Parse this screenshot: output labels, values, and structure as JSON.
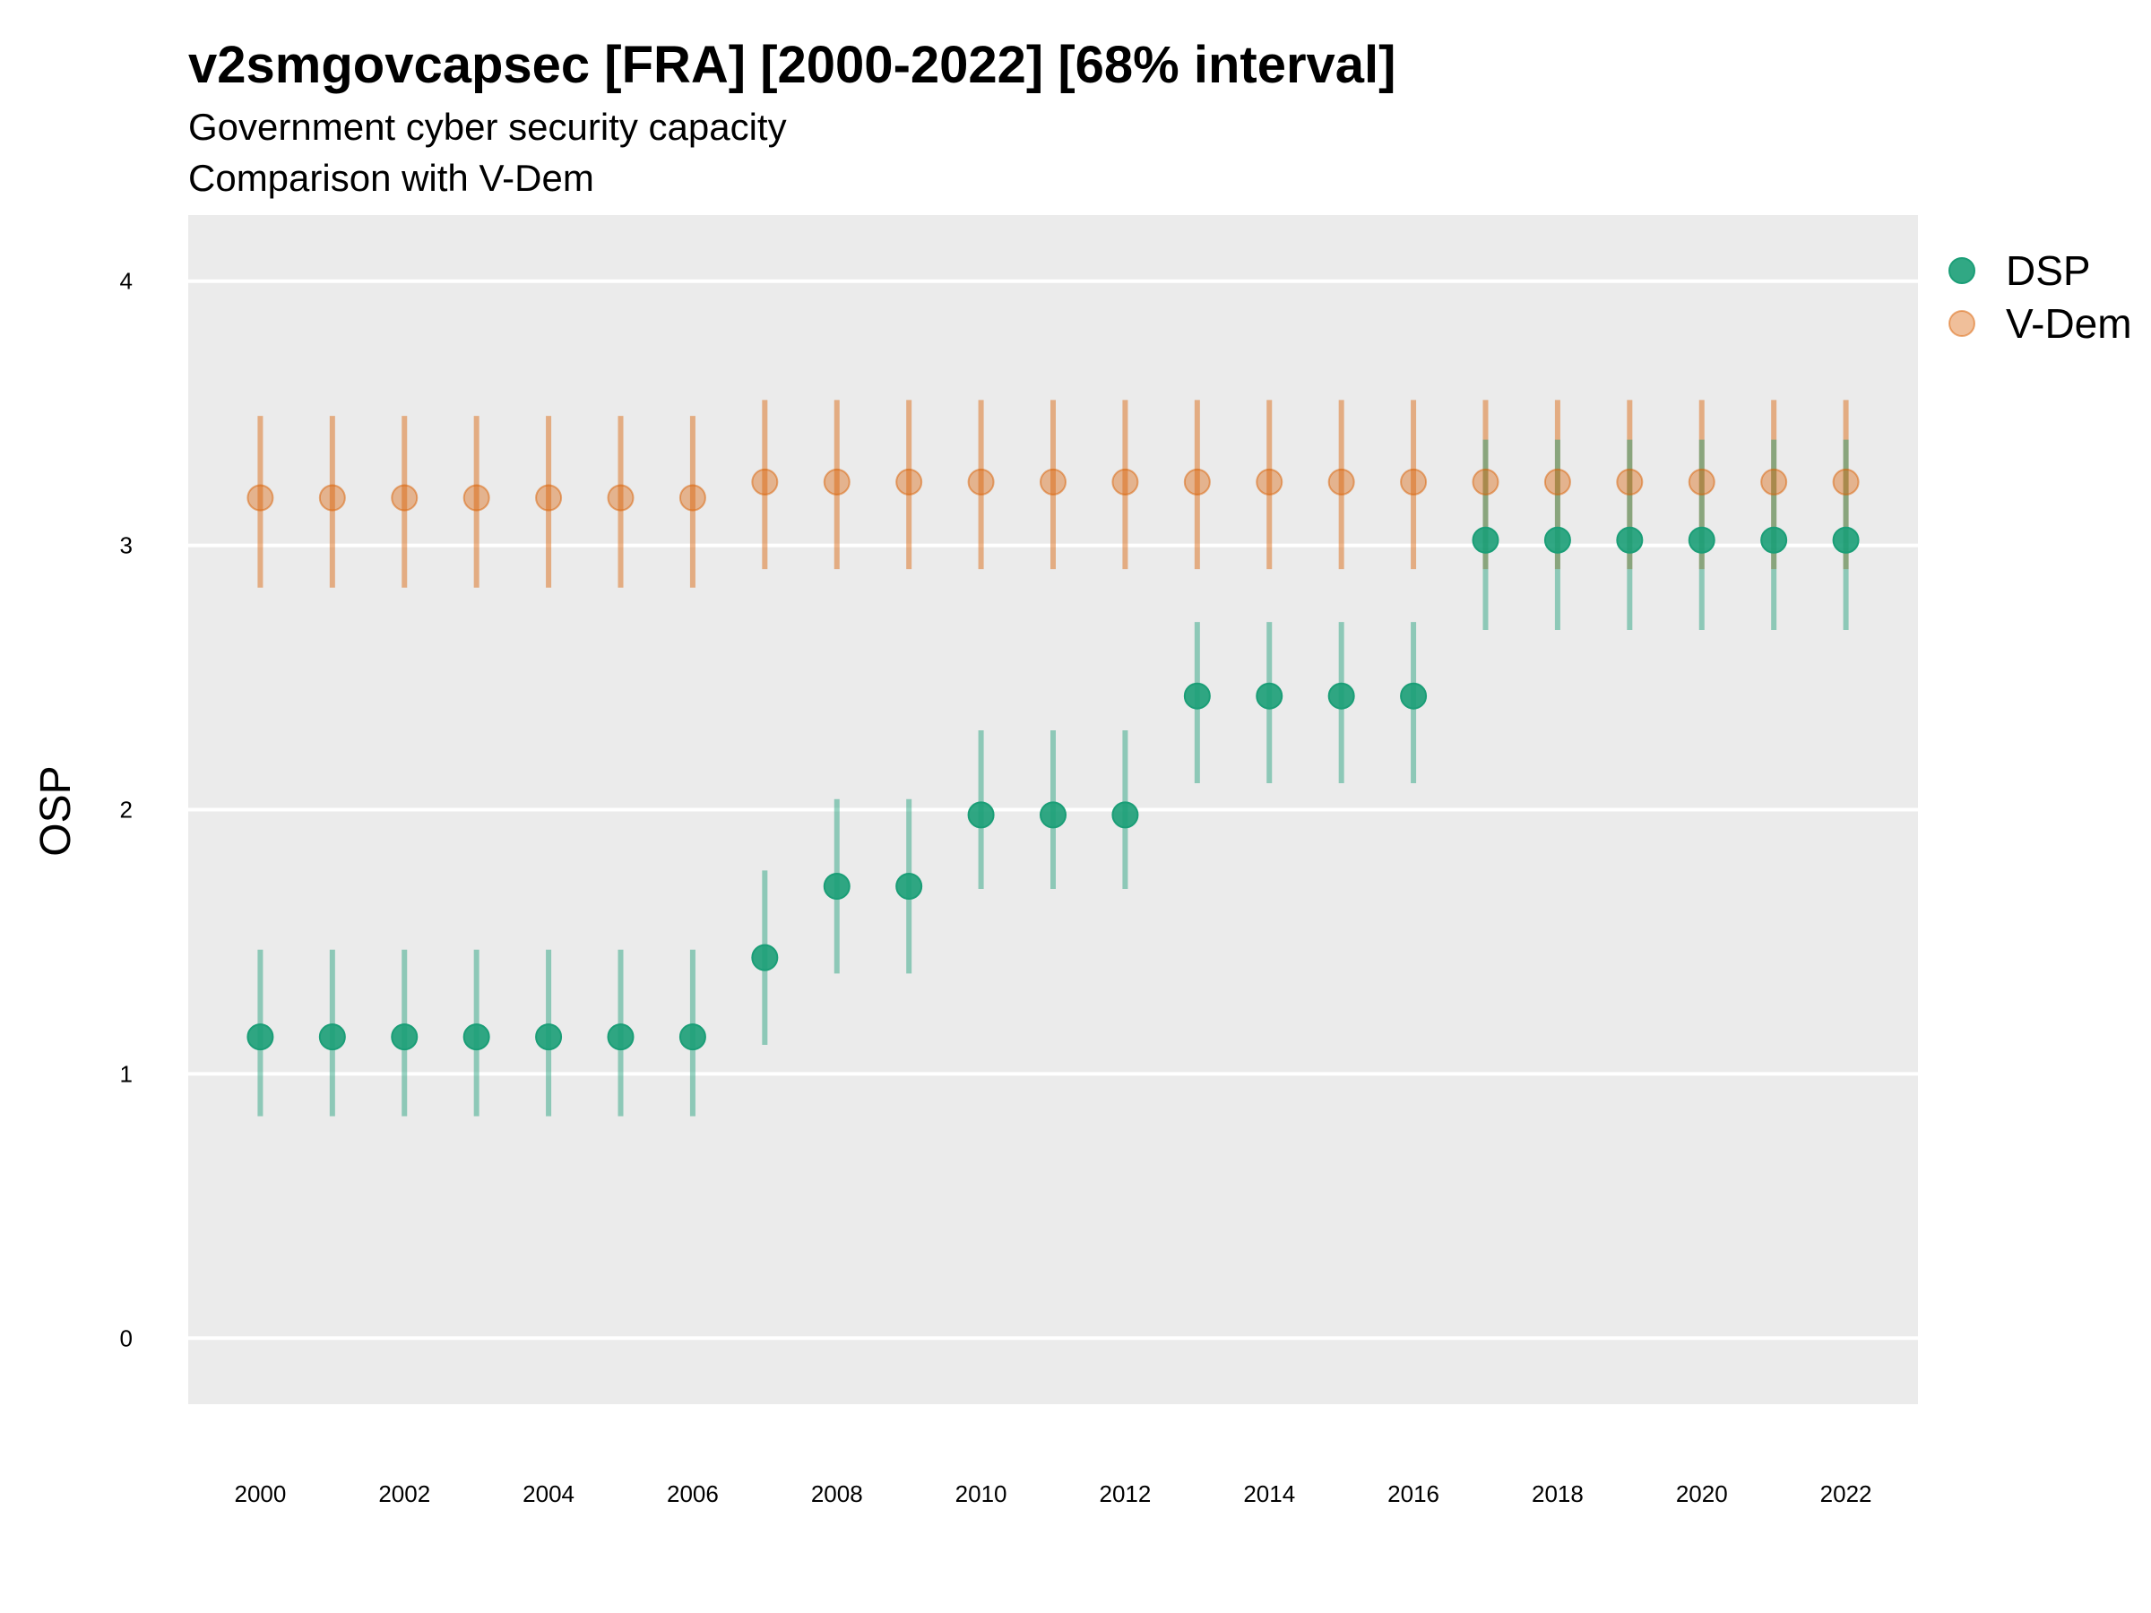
{
  "chart_data": {
    "type": "scatter",
    "title": "v2smgovcapsec [FRA] [2000-2022] [68% interval]",
    "subtitle": "Government cyber security capacity",
    "subtitle2": "Comparison with V-Dem",
    "xlabel": "",
    "ylabel": "OSP",
    "xlim": [
      1999,
      2023
    ],
    "ylim": [
      -0.25,
      4.25
    ],
    "y_ticks": [
      0,
      1,
      2,
      3,
      4
    ],
    "x_ticks": [
      2000,
      2002,
      2004,
      2006,
      2008,
      2010,
      2012,
      2014,
      2016,
      2018,
      2020,
      2022
    ],
    "x": [
      2000,
      2001,
      2002,
      2003,
      2004,
      2005,
      2006,
      2007,
      2008,
      2009,
      2010,
      2011,
      2012,
      2013,
      2014,
      2015,
      2016,
      2017,
      2018,
      2019,
      2020,
      2021,
      2022
    ],
    "legend_position": "right",
    "series": [
      {
        "name": "DSP",
        "color": "#1b9e77",
        "values": [
          1.14,
          1.14,
          1.14,
          1.14,
          1.14,
          1.14,
          1.14,
          1.44,
          1.71,
          1.71,
          1.98,
          1.98,
          1.98,
          2.43,
          2.43,
          2.43,
          2.43,
          3.02,
          3.02,
          3.02,
          3.02,
          3.02,
          3.02
        ],
        "lower": [
          0.84,
          0.84,
          0.84,
          0.84,
          0.84,
          0.84,
          0.84,
          1.11,
          1.38,
          1.38,
          1.7,
          1.7,
          1.7,
          2.1,
          2.1,
          2.1,
          2.1,
          2.68,
          2.68,
          2.68,
          2.68,
          2.68,
          2.68
        ],
        "upper": [
          1.47,
          1.47,
          1.47,
          1.47,
          1.47,
          1.47,
          1.47,
          1.77,
          2.04,
          2.04,
          2.3,
          2.3,
          2.3,
          2.71,
          2.71,
          2.71,
          2.71,
          3.4,
          3.4,
          3.4,
          3.4,
          3.4,
          3.4
        ]
      },
      {
        "name": "V-Dem",
        "color": "#d95f02",
        "values": [
          3.18,
          3.18,
          3.18,
          3.18,
          3.18,
          3.18,
          3.18,
          3.24,
          3.24,
          3.24,
          3.24,
          3.24,
          3.24,
          3.24,
          3.24,
          3.24,
          3.24,
          3.24,
          3.24,
          3.24,
          3.24,
          3.24,
          3.24
        ],
        "lower": [
          2.84,
          2.84,
          2.84,
          2.84,
          2.84,
          2.84,
          2.84,
          2.91,
          2.91,
          2.91,
          2.91,
          2.91,
          2.91,
          2.91,
          2.91,
          2.91,
          2.91,
          2.91,
          2.91,
          2.91,
          2.91,
          2.91,
          2.91
        ],
        "upper": [
          3.49,
          3.49,
          3.49,
          3.49,
          3.49,
          3.49,
          3.49,
          3.55,
          3.55,
          3.55,
          3.55,
          3.55,
          3.55,
          3.55,
          3.55,
          3.55,
          3.55,
          3.55,
          3.55,
          3.55,
          3.55,
          3.55,
          3.55
        ]
      }
    ]
  }
}
